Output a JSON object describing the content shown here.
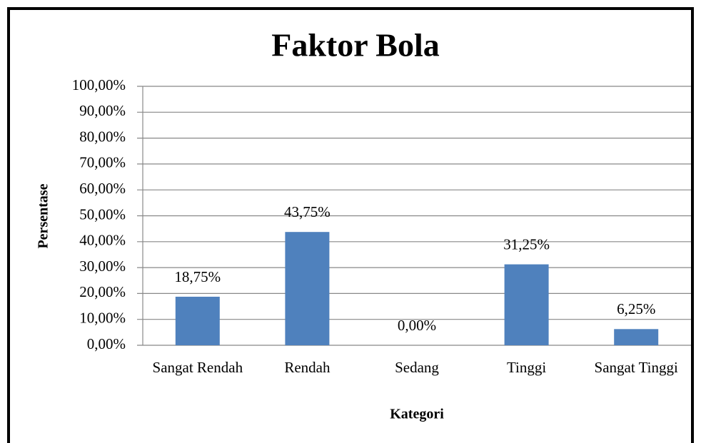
{
  "chart_data": {
    "type": "bar",
    "title": "Faktor Bola",
    "x_label": "Kategori",
    "y_label": "Persentase",
    "categories": [
      "Sangat Rendah",
      "Rendah",
      "Sedang",
      "Tinggi",
      "Sangat Tinggi"
    ],
    "values": [
      18.75,
      43.75,
      0,
      31.25,
      6.25
    ],
    "value_labels": [
      "18,75%",
      "43,75%",
      "0,00%",
      "31,25%",
      "6,25%"
    ],
    "color": "#4f81bd",
    "ylim": [
      0,
      100
    ],
    "yticks": [
      {
        "value": 0,
        "label": "0,00%"
      },
      {
        "value": 10,
        "label": "10,00%"
      },
      {
        "value": 20,
        "label": "20,00%"
      },
      {
        "value": 30,
        "label": "30,00%"
      },
      {
        "value": 40,
        "label": "40,00%"
      },
      {
        "value": 50,
        "label": "50,00%"
      },
      {
        "value": 60,
        "label": "60,00%"
      },
      {
        "value": 70,
        "label": "70,00%"
      },
      {
        "value": 80,
        "label": "80,00%"
      },
      {
        "value": 90,
        "label": "90,00%"
      },
      {
        "value": 100,
        "label": "100,00%"
      }
    ],
    "grid": true
  }
}
